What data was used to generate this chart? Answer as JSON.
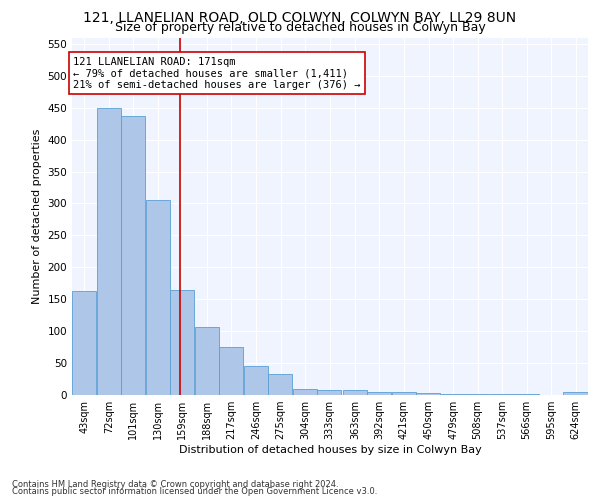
{
  "title1": "121, LLANELIAN ROAD, OLD COLWYN, COLWYN BAY, LL29 8UN",
  "title2": "Size of property relative to detached houses in Colwyn Bay",
  "xlabel": "Distribution of detached houses by size in Colwyn Bay",
  "ylabel": "Number of detached properties",
  "footer1": "Contains HM Land Registry data © Crown copyright and database right 2024.",
  "footer2": "Contains public sector information licensed under the Open Government Licence v3.0.",
  "bins": [
    43,
    72,
    101,
    130,
    159,
    188,
    217,
    246,
    275,
    304,
    333,
    363,
    392,
    421,
    450,
    479,
    508,
    537,
    566,
    595,
    624
  ],
  "bar_heights": [
    163,
    450,
    437,
    305,
    165,
    106,
    75,
    45,
    33,
    10,
    8,
    8,
    5,
    4,
    3,
    2,
    1,
    1,
    1,
    0,
    4
  ],
  "bar_color": "#aec6e8",
  "bar_edge_color": "#5a9fd4",
  "property_size": 171,
  "vline_color": "#cc0000",
  "annotation_line1": "121 LLANELIAN ROAD: 171sqm",
  "annotation_line2": "← 79% of detached houses are smaller (1,411)",
  "annotation_line3": "21% of semi-detached houses are larger (376) →",
  "annotation_box_color": "#ffffff",
  "annotation_box_edge": "#cc0000",
  "ylim": [
    0,
    560
  ],
  "yticks": [
    0,
    50,
    100,
    150,
    200,
    250,
    300,
    350,
    400,
    450,
    500,
    550
  ],
  "bg_color": "#ffffff",
  "plot_bg_color": "#f0f4ff",
  "title1_fontsize": 10,
  "title2_fontsize": 9,
  "tick_label_fontsize": 7,
  "ylabel_fontsize": 8,
  "xlabel_fontsize": 8,
  "footer_fontsize": 6,
  "annotation_fontsize": 7.5
}
